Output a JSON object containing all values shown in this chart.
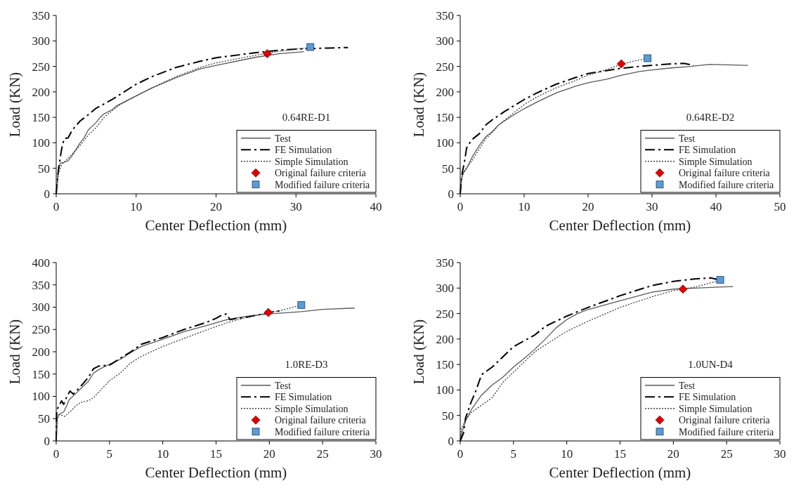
{
  "chart_data": [
    {
      "type": "line",
      "xlabel": "Center Deflection (mm)",
      "ylabel": "Load (KN)",
      "annotations": [
        "0.64RE-D1"
      ],
      "xlim": [
        0,
        40
      ],
      "xticks": [
        0,
        10,
        20,
        30,
        40
      ],
      "ylim": [
        0,
        350
      ],
      "yticks": [
        0,
        50,
        100,
        150,
        200,
        250,
        300,
        350
      ],
      "legend": "bottom right",
      "series": [
        {
          "name": "Test",
          "type": "line",
          "color": "#595959",
          "line_style": "solid",
          "marker": "none",
          "x": [
            0,
            0.2,
            0.5,
            1,
            1.5,
            2,
            3,
            3.5,
            4,
            5,
            5.5,
            6,
            7,
            7.5,
            10,
            12,
            15,
            18,
            20,
            25,
            28,
            31
          ],
          "values": [
            0,
            40,
            60,
            62,
            65,
            75,
            100,
            110,
            125,
            140,
            150,
            157,
            165,
            172,
            192,
            208,
            228,
            245,
            252,
            268,
            275,
            279
          ]
        },
        {
          "name": "FE Simulation",
          "type": "line",
          "color": "#000000",
          "line_style": "dashed",
          "marker": "none",
          "x": [
            0,
            0.3,
            0.7,
            1,
            1.5,
            2,
            3,
            4,
            5,
            7,
            9,
            10,
            12,
            15,
            18,
            20,
            25,
            28,
            30,
            32,
            34,
            36.5
          ],
          "values": [
            0,
            50,
            90,
            108,
            110,
            125,
            143,
            155,
            168,
            185,
            205,
            215,
            230,
            248,
            260,
            267,
            277,
            282,
            284,
            285,
            286,
            287
          ]
        },
        {
          "name": "Simple Simulation",
          "type": "line",
          "color": "#404040",
          "line_style": "dotted",
          "marker": "none",
          "x": [
            0,
            0.3,
            0.7,
            1,
            2,
            3,
            4,
            5,
            6,
            7,
            8,
            10,
            12,
            15,
            18,
            20,
            25,
            28,
            30,
            32
          ],
          "values": [
            0,
            40,
            58,
            62,
            78,
            95,
            115,
            130,
            150,
            163,
            175,
            192,
            208,
            230,
            248,
            257,
            272,
            280,
            284,
            287
          ]
        },
        {
          "name": "Original failure criteria",
          "type": "scatter",
          "color": "#e00000",
          "marker": "diamond",
          "x": [
            26.4
          ],
          "values": [
            275
          ]
        },
        {
          "name": "Modified failure criteria",
          "type": "scatter",
          "color": "#5b9bd5",
          "marker": "square",
          "x": [
            31.8
          ],
          "values": [
            288
          ]
        }
      ]
    },
    {
      "type": "line",
      "xlabel": "Center Deflection (mm)",
      "ylabel": "Load (KN)",
      "annotations": [
        "0.64RE-D2"
      ],
      "xlim": [
        0,
        50
      ],
      "xticks": [
        0,
        10,
        20,
        30,
        40,
        50
      ],
      "ylim": [
        0,
        350
      ],
      "yticks": [
        0,
        50,
        100,
        150,
        200,
        250,
        300,
        350
      ],
      "legend": "bottom right",
      "series": [
        {
          "name": "Test",
          "type": "line",
          "color": "#595959",
          "line_style": "solid",
          "marker": "none",
          "x": [
            0,
            0.2,
            0.5,
            1,
            2,
            3,
            4,
            5,
            6,
            8,
            10,
            12,
            15,
            18,
            20,
            23,
            25,
            28,
            30,
            33,
            36,
            39,
            42,
            45
          ],
          "values": [
            0,
            30,
            42,
            50,
            75,
            95,
            112,
            122,
            135,
            152,
            167,
            180,
            198,
            211,
            218,
            225,
            232,
            240,
            243,
            247,
            250,
            254,
            253,
            252
          ]
        },
        {
          "name": "FE Simulation",
          "type": "line",
          "color": "#000000",
          "line_style": "dashed",
          "marker": "none",
          "x": [
            0,
            0.3,
            0.7,
            1,
            1.5,
            2,
            3,
            4,
            5,
            7,
            10,
            12,
            15,
            18,
            20,
            22,
            25,
            28,
            30,
            33,
            35,
            36.5
          ],
          "values": [
            0,
            40,
            65,
            90,
            100,
            108,
            118,
            135,
            145,
            162,
            185,
            198,
            215,
            228,
            236,
            240,
            246,
            250,
            252,
            255,
            256,
            252
          ]
        },
        {
          "name": "Simple Simulation",
          "type": "line",
          "color": "#404040",
          "line_style": "dotted",
          "marker": "none",
          "x": [
            0,
            0.3,
            1,
            2,
            3,
            4,
            5,
            6,
            8,
            10,
            12,
            15,
            18,
            20,
            22,
            25,
            27,
            29.3
          ],
          "values": [
            0,
            35,
            50,
            68,
            88,
            108,
            120,
            135,
            155,
            175,
            190,
            208,
            222,
            233,
            240,
            253,
            260,
            266
          ]
        },
        {
          "name": "Original failure criteria",
          "type": "scatter",
          "color": "#e00000",
          "marker": "diamond",
          "x": [
            25.2
          ],
          "values": [
            255
          ]
        },
        {
          "name": "Modified failure criteria",
          "type": "scatter",
          "color": "#5b9bd5",
          "marker": "square",
          "x": [
            29.3
          ],
          "values": [
            266
          ]
        }
      ]
    },
    {
      "type": "line",
      "xlabel": "Center Deflection (mm)",
      "ylabel": "Load (KN)",
      "annotations": [
        "1.0RE-D3"
      ],
      "xlim": [
        0,
        30
      ],
      "xticks": [
        0,
        5,
        10,
        15,
        20,
        25,
        30
      ],
      "ylim": [
        0,
        400
      ],
      "yticks": [
        0,
        50,
        100,
        150,
        200,
        250,
        300,
        350,
        400
      ],
      "legend": "bottom right",
      "series": [
        {
          "name": "Test",
          "type": "line",
          "color": "#595959",
          "line_style": "solid",
          "marker": "none",
          "x": [
            0,
            0.1,
            0.3,
            0.7,
            1,
            1.2,
            2,
            2.5,
            3,
            3.5,
            4,
            5,
            6,
            7,
            8,
            10,
            12,
            14,
            16,
            18,
            20,
            23,
            25,
            28
          ],
          "values": [
            0,
            50,
            60,
            65,
            80,
            92,
            110,
            122,
            133,
            152,
            160,
            172,
            183,
            198,
            212,
            228,
            245,
            258,
            272,
            280,
            285,
            290,
            295,
            298
          ]
        },
        {
          "name": "FE Simulation",
          "type": "line",
          "color": "#000000",
          "line_style": "dashed",
          "marker": "none",
          "x": [
            0,
            0.05,
            0.3,
            0.5,
            0.7,
            1,
            1.3,
            1.6,
            2,
            2.5,
            3,
            3.5,
            4,
            5,
            6,
            7,
            8,
            10,
            12,
            14,
            15,
            15.5,
            16,
            16.3,
            17,
            18,
            19,
            20,
            21
          ],
          "values": [
            0,
            70,
            80,
            90,
            82,
            100,
            112,
            105,
            115,
            128,
            142,
            162,
            168,
            170,
            185,
            200,
            217,
            232,
            250,
            265,
            275,
            282,
            285,
            272,
            275,
            278,
            283,
            288,
            292
          ]
        },
        {
          "name": "Simple Simulation",
          "type": "line",
          "color": "#404040",
          "line_style": "dotted",
          "marker": "none",
          "x": [
            0,
            0.1,
            0.5,
            0.8,
            1.5,
            2,
            2.5,
            3,
            3.5,
            4,
            5,
            6,
            7,
            8,
            10,
            12,
            14,
            16,
            18,
            20,
            21,
            23
          ],
          "values": [
            0,
            60,
            58,
            55,
            70,
            82,
            88,
            90,
            97,
            110,
            135,
            152,
            175,
            190,
            212,
            230,
            248,
            265,
            278,
            288,
            292,
            305
          ]
        },
        {
          "name": "Original failure criteria",
          "type": "scatter",
          "color": "#e00000",
          "marker": "diamond",
          "x": [
            19.9
          ],
          "values": [
            288
          ]
        },
        {
          "name": "Modified failure criteria",
          "type": "scatter",
          "color": "#5b9bd5",
          "marker": "square",
          "x": [
            23
          ],
          "values": [
            305
          ]
        }
      ]
    },
    {
      "type": "line",
      "xlabel": "Center Deflection (mm)",
      "ylabel": "Load (KN)",
      "annotations": [
        "1.0UN-D4"
      ],
      "xlim": [
        0,
        30
      ],
      "xticks": [
        0,
        5,
        10,
        15,
        20,
        25,
        30
      ],
      "ylim": [
        0,
        350
      ],
      "yticks": [
        0,
        50,
        100,
        150,
        200,
        250,
        300,
        350
      ],
      "legend": "bottom right",
      "series": [
        {
          "name": "Test",
          "type": "line",
          "color": "#595959",
          "line_style": "solid",
          "marker": "none",
          "x": [
            0,
            0.2,
            0.5,
            1,
            2,
            3,
            4,
            5,
            6,
            7,
            8,
            9,
            10,
            11,
            12,
            15,
            18,
            20,
            22,
            25.6
          ],
          "values": [
            0,
            20,
            40,
            60,
            90,
            110,
            125,
            145,
            162,
            180,
            200,
            222,
            238,
            250,
            258,
            275,
            292,
            298,
            300,
            303
          ]
        },
        {
          "name": "FE Simulation",
          "type": "line",
          "color": "#000000",
          "line_style": "dashed",
          "marker": "none",
          "x": [
            0,
            0.3,
            0.5,
            1,
            1.5,
            2,
            3,
            4,
            5,
            7,
            8,
            10,
            12,
            15,
            18,
            20,
            22,
            23.5,
            24.3
          ],
          "values": [
            0,
            15,
            45,
            75,
            100,
            130,
            145,
            165,
            185,
            208,
            225,
            245,
            262,
            285,
            305,
            313,
            318,
            320,
            316
          ]
        },
        {
          "name": "Simple Simulation",
          "type": "line",
          "color": "#404040",
          "line_style": "dotted",
          "marker": "none",
          "x": [
            0,
            0.1,
            0.5,
            1,
            2,
            3,
            3.5,
            4,
            5,
            7,
            9,
            10,
            12,
            15,
            18,
            20,
            22,
            24.4
          ],
          "values": [
            0,
            25,
            40,
            55,
            70,
            85,
            100,
            115,
            135,
            175,
            202,
            215,
            235,
            262,
            283,
            295,
            302,
            315
          ]
        },
        {
          "name": "Original failure criteria",
          "type": "scatter",
          "color": "#e00000",
          "marker": "diamond",
          "x": [
            20.9
          ],
          "values": [
            298
          ]
        },
        {
          "name": "Modified failure criteria",
          "type": "scatter",
          "color": "#5b9bd5",
          "marker": "square",
          "x": [
            24.4
          ],
          "values": [
            316
          ]
        }
      ]
    }
  ]
}
